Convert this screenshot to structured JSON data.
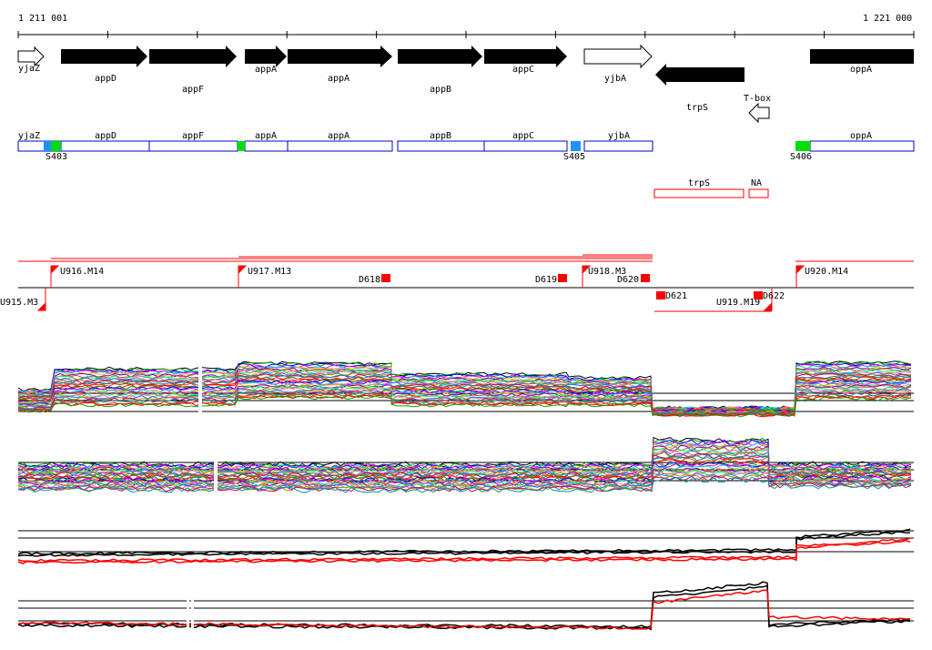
{
  "ruler": {
    "start_label": "1 211 001",
    "end_label": "1 221 000"
  },
  "genes": {
    "yjaZ": "yjaZ",
    "appD": "appD",
    "appF": "appF",
    "appA": "appA",
    "appB": "appB",
    "appC": "appC",
    "yjbA": "yjbA",
    "trpS": "trpS",
    "tbox": "T-box",
    "oppA": "oppA",
    "NA": "NA"
  },
  "sites": {
    "S403": "S403",
    "S405": "S405",
    "S406": "S406"
  },
  "segments": {
    "U916": "U916.M14",
    "U917": "U917.M13",
    "U918": "U918.M3",
    "U920": "U920.M14",
    "U915": "U915.M3",
    "U919": "U919.M19",
    "D618": "D618",
    "D619": "D619",
    "D620": "D620",
    "D621": "D621",
    "D622": "D622"
  },
  "colors": {
    "gene": "#000000",
    "operon_box": "#0000cc",
    "red": "#ff0000",
    "green": "#00dd00",
    "blue": "#1e90ff"
  }
}
